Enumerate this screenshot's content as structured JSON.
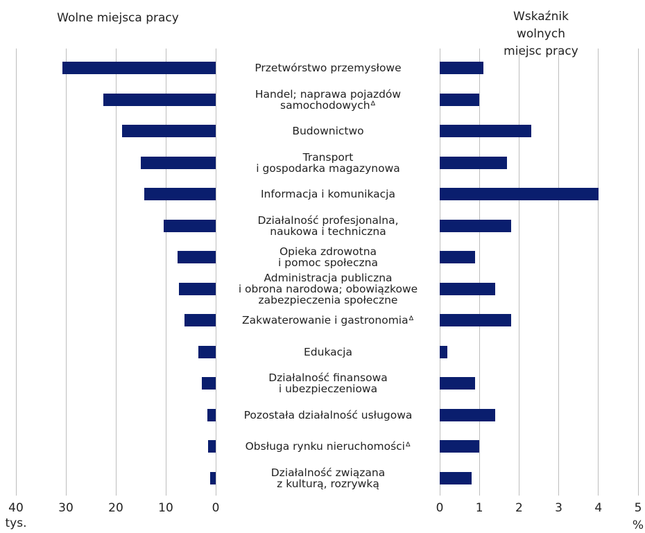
{
  "chart_data": [
    {
      "type": "bar",
      "orientation": "horizontal",
      "title": "Wolne miejsca pracy",
      "xlabel": "tys.",
      "categories": [
        "Przetwórstwo przemysłowe",
        "Handel; naprawa pojazdów\nsamochodowychᐞ",
        "Budownictwo",
        "Transport\ni gospodarka magazynowa",
        "Informacja i komunikacja",
        "Działalność profesjonalna,\nnaukowa i techniczna",
        "Opieka zdrowotna\ni pomoc społeczna",
        "Administracja publiczna\ni obrona narodowa; obowiązkowe\nzabezpieczenia społeczne",
        "Zakwaterowanie i gastronomiaᐞ",
        "Edukacja",
        "Działalność finansowa\ni ubezpieczeniowa",
        "Pozostała działalność usługowa",
        "Obsługa rynku nieruchomościᐞ",
        "Działalność związana\nz kulturą, rozrywką"
      ],
      "values": [
        30.7,
        22.5,
        18.8,
        15.0,
        14.3,
        10.4,
        7.6,
        7.4,
        6.3,
        3.5,
        2.8,
        1.7,
        1.5,
        1.1
      ],
      "color": "#0a1e6e",
      "xlim": [
        0,
        40
      ],
      "xticks": [
        40,
        30,
        20,
        10,
        0
      ],
      "reversed": true,
      "grid": true
    },
    {
      "type": "bar",
      "orientation": "horizontal",
      "title": "Wskaźnik wolnych\nmiejsc pracy",
      "xlabel": "%",
      "values": [
        1.1,
        1.0,
        2.3,
        1.7,
        4.0,
        1.8,
        0.9,
        1.4,
        1.8,
        0.2,
        0.9,
        1.4,
        1.0,
        0.8
      ],
      "color": "#0a1e6e",
      "xlim": [
        0,
        5
      ],
      "xticks": [
        0,
        1,
        2,
        3,
        4,
        5
      ],
      "reversed": false,
      "grid": true
    }
  ]
}
